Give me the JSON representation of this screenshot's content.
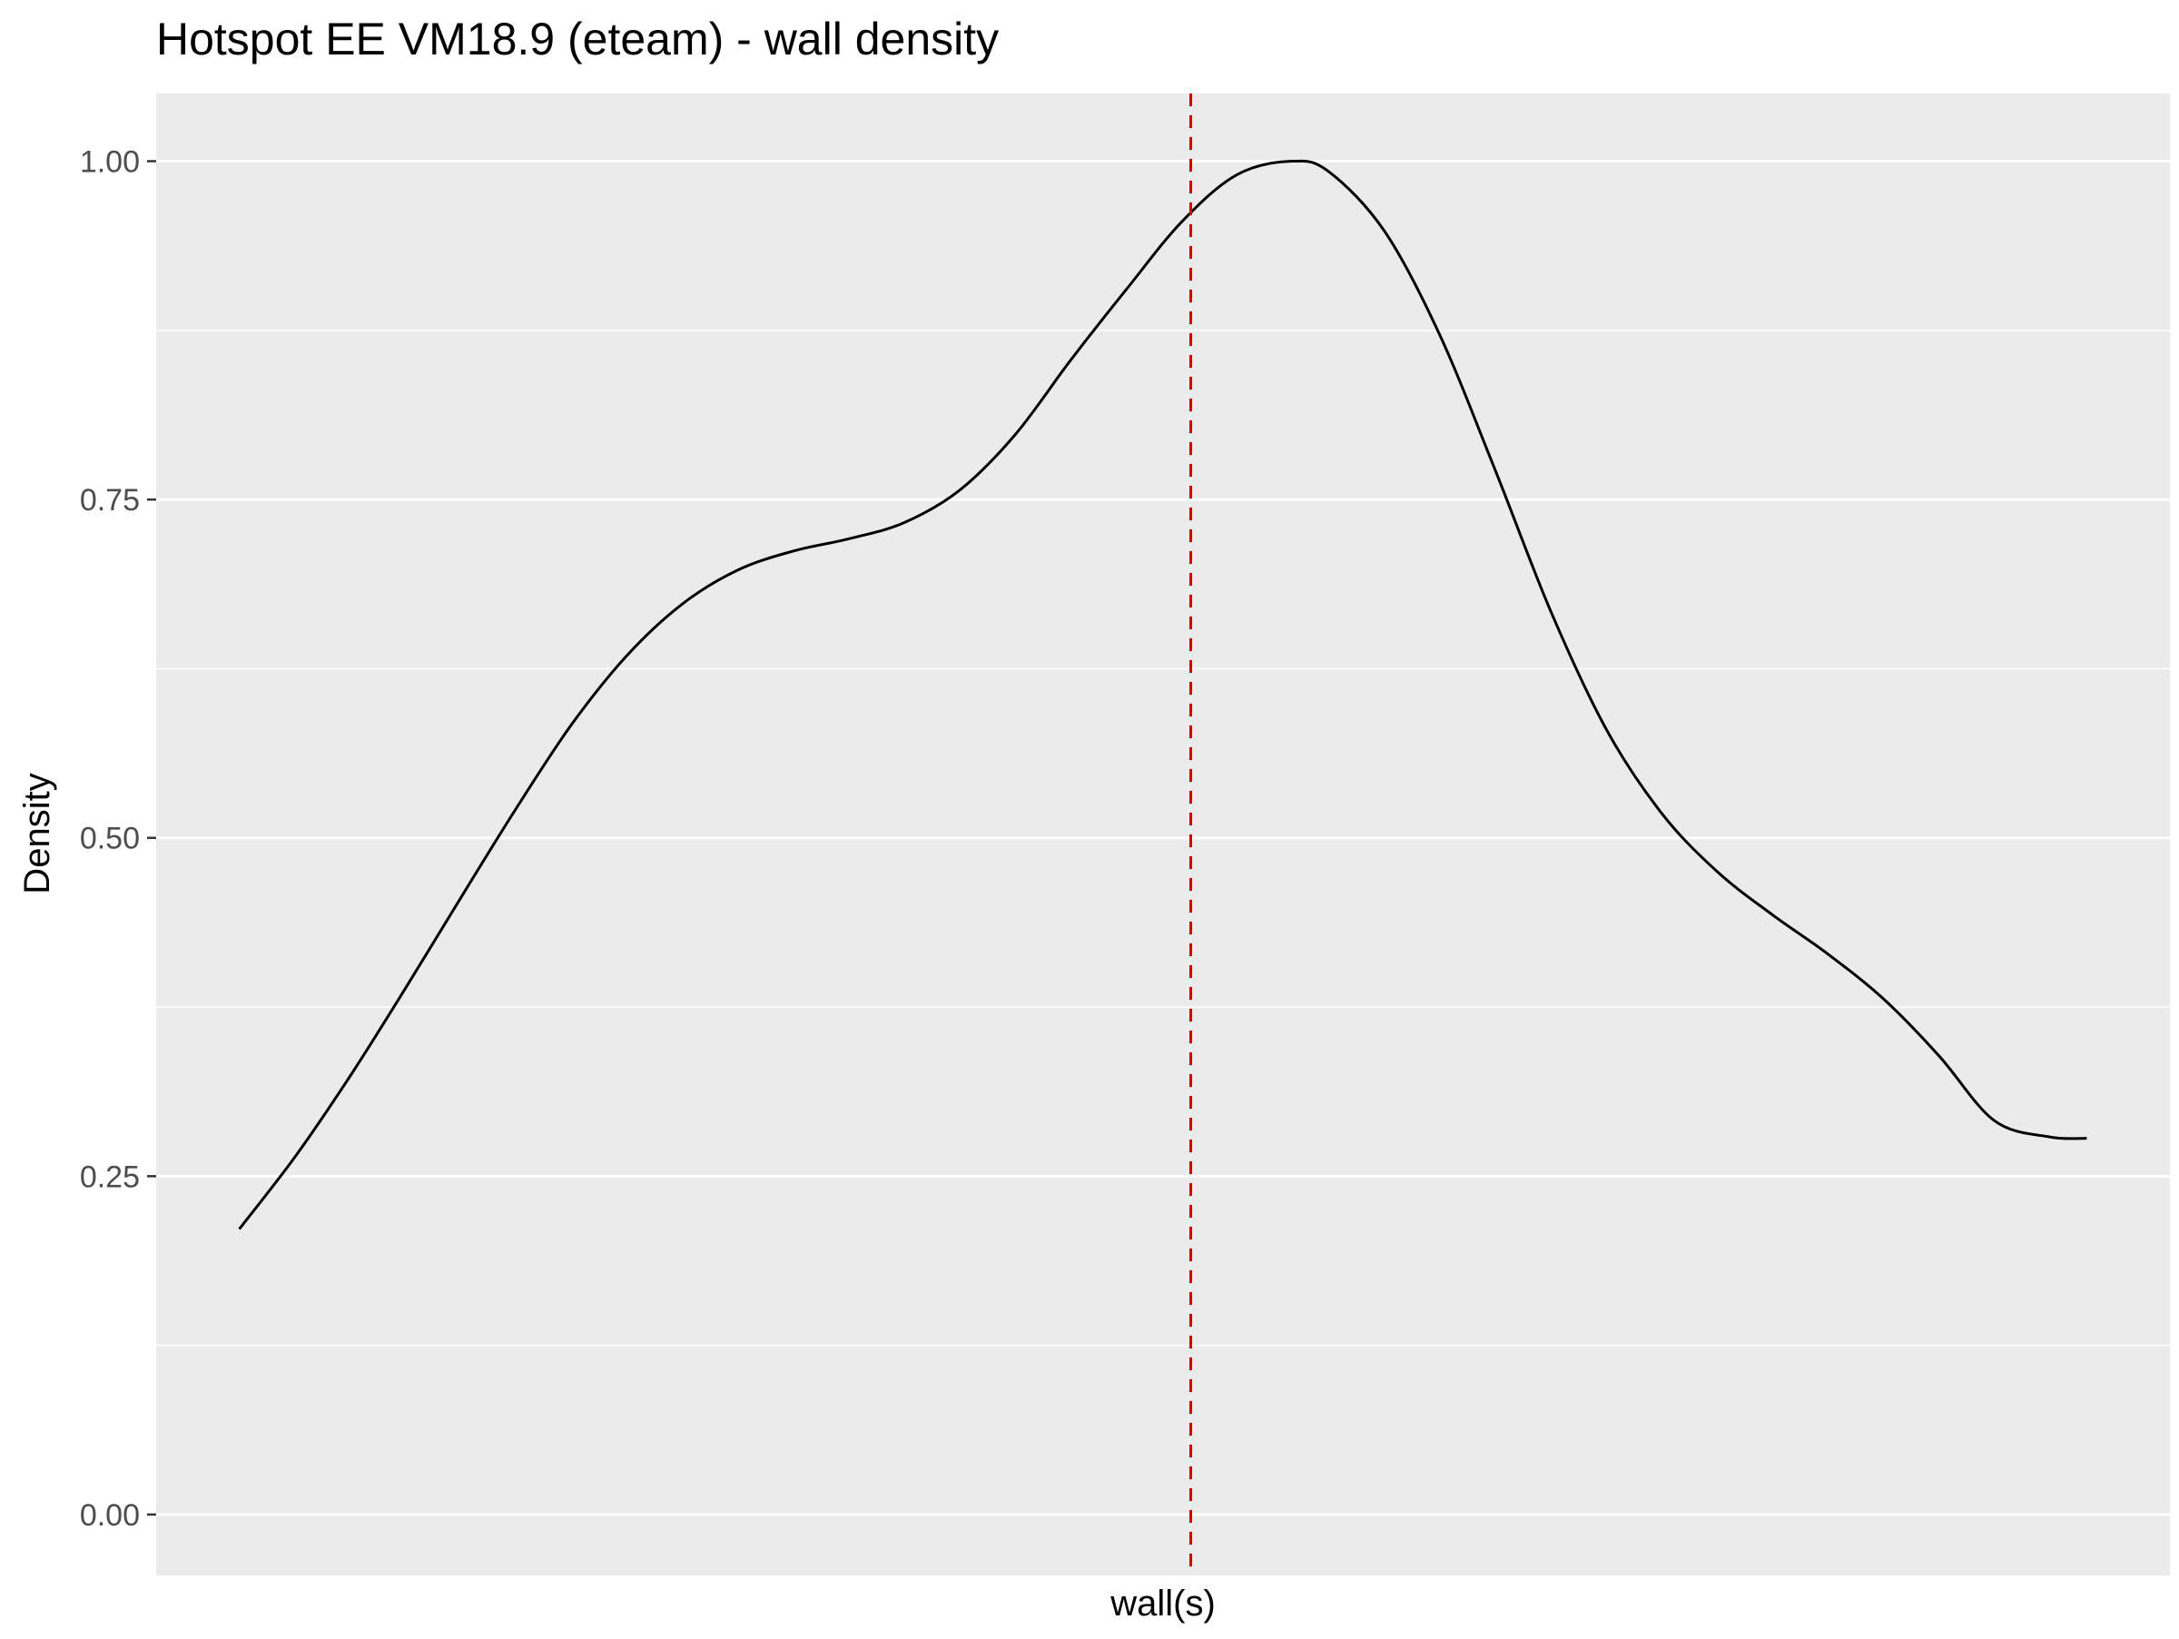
{
  "chart_data": {
    "type": "line",
    "title": "Hotspot EE VM18.9 (eteam) - wall density",
    "xlabel": "wall(s)",
    "ylabel": "Density",
    "ylim": [
      -0.045,
      1.05
    ],
    "xlim": [
      -0.045,
      1.045
    ],
    "y_ticks": [
      0.0,
      0.25,
      0.5,
      0.75,
      1.0
    ],
    "y_tick_labels": [
      "0.00",
      "0.25",
      "0.50",
      "0.75",
      "1.00"
    ],
    "grid": true,
    "panel_background": "#ebebeb",
    "grid_color": "#ffffff",
    "line_color": "#000000",
    "vline_color": "#cc0000",
    "vline_style": "dashed",
    "vline_x": 0.515,
    "series": [
      {
        "x": [
          0.0,
          0.03,
          0.06,
          0.09,
          0.12,
          0.15,
          0.18,
          0.21,
          0.24,
          0.27,
          0.3,
          0.33,
          0.36,
          0.39,
          0.42,
          0.45,
          0.48,
          0.51,
          0.54,
          0.57,
          0.59,
          0.62,
          0.65,
          0.68,
          0.71,
          0.74,
          0.77,
          0.8,
          0.83,
          0.86,
          0.89,
          0.92,
          0.95,
          0.98,
          1.0
        ],
        "y": [
          0.211,
          0.264,
          0.324,
          0.389,
          0.456,
          0.522,
          0.584,
          0.635,
          0.673,
          0.698,
          0.712,
          0.721,
          0.733,
          0.757,
          0.798,
          0.853,
          0.905,
          0.955,
          0.99,
          1.0,
          0.992,
          0.948,
          0.871,
          0.771,
          0.667,
          0.58,
          0.518,
          0.475,
          0.443,
          0.414,
          0.381,
          0.339,
          0.291,
          0.279,
          0.278
        ]
      }
    ]
  }
}
